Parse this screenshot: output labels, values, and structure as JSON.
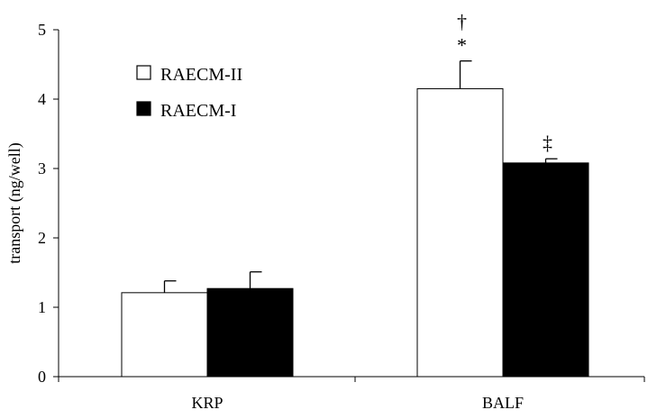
{
  "chart_data": {
    "type": "bar",
    "title": "",
    "xlabel": "",
    "ylabel": "transport (ng/well)",
    "ylim": [
      0,
      5
    ],
    "yticks": [
      0,
      1,
      2,
      3,
      4,
      5
    ],
    "categories": [
      "KRP",
      "BALF"
    ],
    "series": [
      {
        "name": "RAECM-II",
        "fill": "#ffffff",
        "values": [
          1.21,
          4.15
        ],
        "errors": [
          0.17,
          0.4
        ]
      },
      {
        "name": "RAECM-I",
        "fill": "#000000",
        "values": [
          1.27,
          3.08
        ],
        "errors": [
          0.24,
          0.06
        ]
      }
    ],
    "annotations": [
      {
        "category": "BALF",
        "series": "RAECM-II",
        "symbols": [
          "†",
          "*"
        ]
      },
      {
        "category": "BALF",
        "series": "RAECM-I",
        "symbols": [
          "‡"
        ]
      }
    ],
    "legend_position": "top-left",
    "grid": false
  }
}
